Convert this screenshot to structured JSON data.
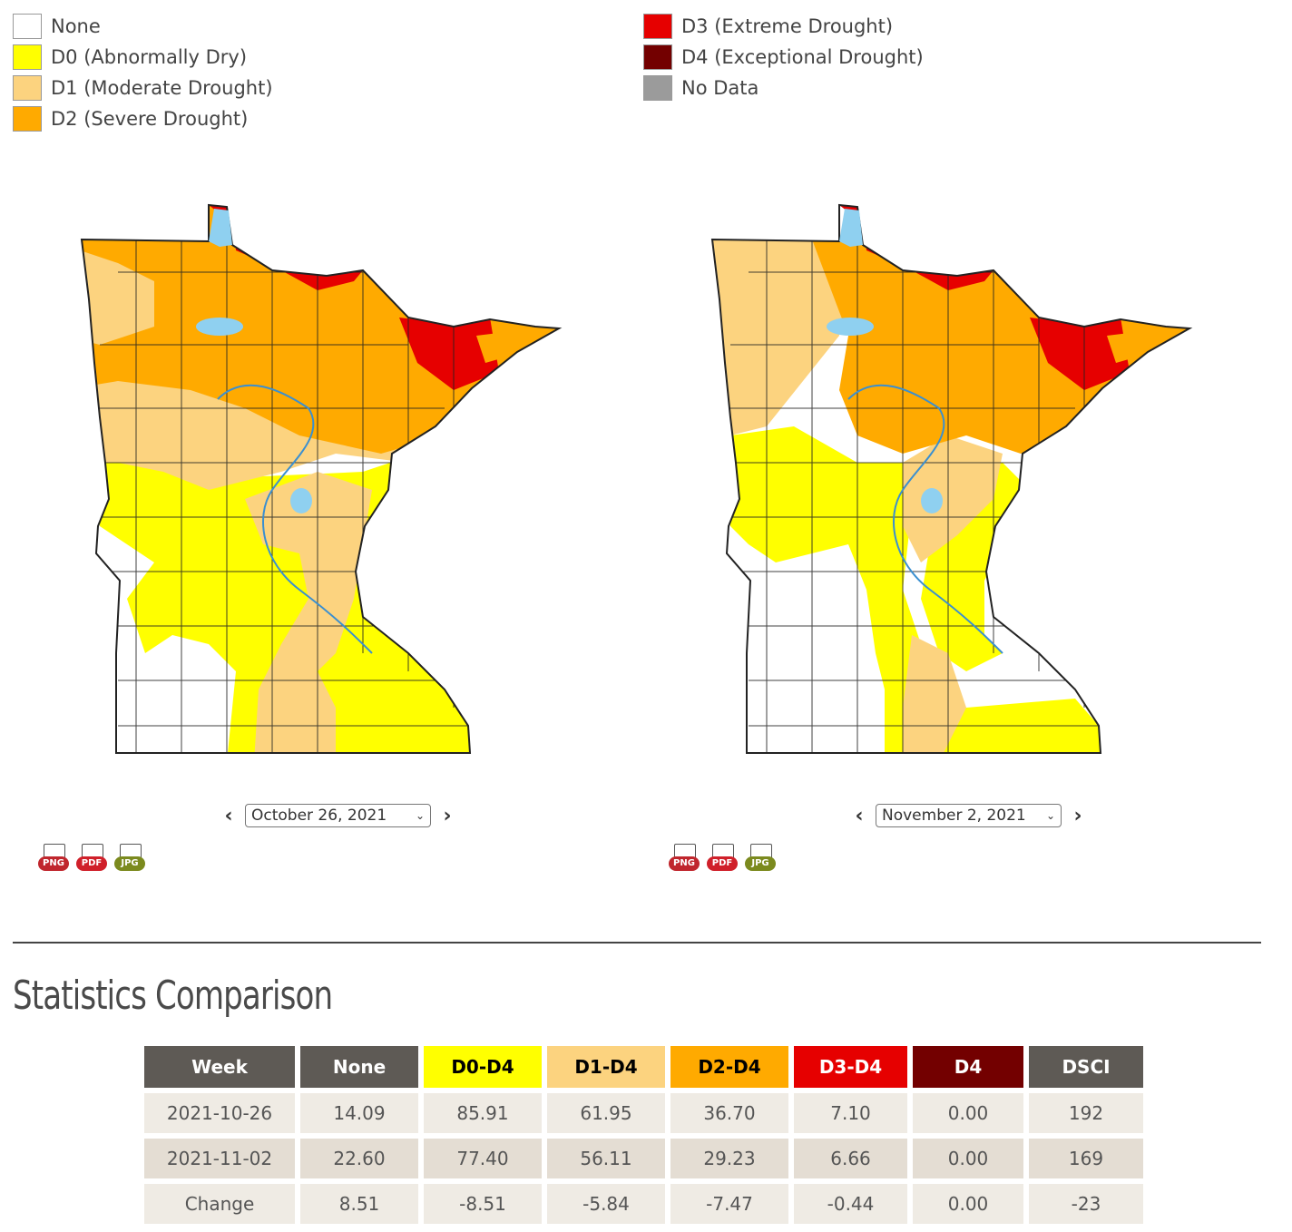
{
  "legend": {
    "left": [
      {
        "label": "None",
        "color": "#ffffff"
      },
      {
        "label": "D0 (Abnormally Dry)",
        "color": "#ffff00"
      },
      {
        "label": "D1 (Moderate Drought)",
        "color": "#fcd37f"
      },
      {
        "label": "D2 (Severe Drought)",
        "color": "#ffaa00"
      }
    ],
    "right": [
      {
        "label": "D3 (Extreme Drought)",
        "color": "#e60000"
      },
      {
        "label": "D4 (Exceptional Drought)",
        "color": "#730000"
      },
      {
        "label": "No Data",
        "color": "#9b9b9b"
      }
    ]
  },
  "maps": [
    {
      "date": "October 26, 2021",
      "downloads": [
        "PNG",
        "PDF",
        "JPG"
      ]
    },
    {
      "date": "November 2, 2021",
      "downloads": [
        "PNG",
        "PDF",
        "JPG"
      ]
    }
  ],
  "colors": {
    "water": "#8fd0f0",
    "river": "#3a8fd0",
    "border": "#222222"
  },
  "stats": {
    "title": "Statistics Comparison",
    "headers": [
      {
        "label": "Week",
        "bg": "#5e5a55",
        "fg": "#ffffff"
      },
      {
        "label": "None",
        "bg": "#5e5a55",
        "fg": "#ffffff"
      },
      {
        "label": "D0-D4",
        "bg": "#ffff00",
        "fg": "#000000"
      },
      {
        "label": "D1-D4",
        "bg": "#fcd37f",
        "fg": "#000000"
      },
      {
        "label": "D2-D4",
        "bg": "#ffaa00",
        "fg": "#000000"
      },
      {
        "label": "D3-D4",
        "bg": "#e60000",
        "fg": "#ffffff"
      },
      {
        "label": "D4",
        "bg": "#730000",
        "fg": "#ffffff"
      },
      {
        "label": "DSCI",
        "bg": "#5e5a55",
        "fg": "#ffffff"
      }
    ],
    "rows": [
      [
        "2021-10-26",
        "14.09",
        "85.91",
        "61.95",
        "36.70",
        "7.10",
        "0.00",
        "192"
      ],
      [
        "2021-11-02",
        "22.60",
        "77.40",
        "56.11",
        "29.23",
        "6.66",
        "0.00",
        "169"
      ],
      [
        "Change",
        "8.51",
        "-8.51",
        "-5.84",
        "-7.47",
        "-0.44",
        "0.00",
        "-23"
      ]
    ]
  }
}
